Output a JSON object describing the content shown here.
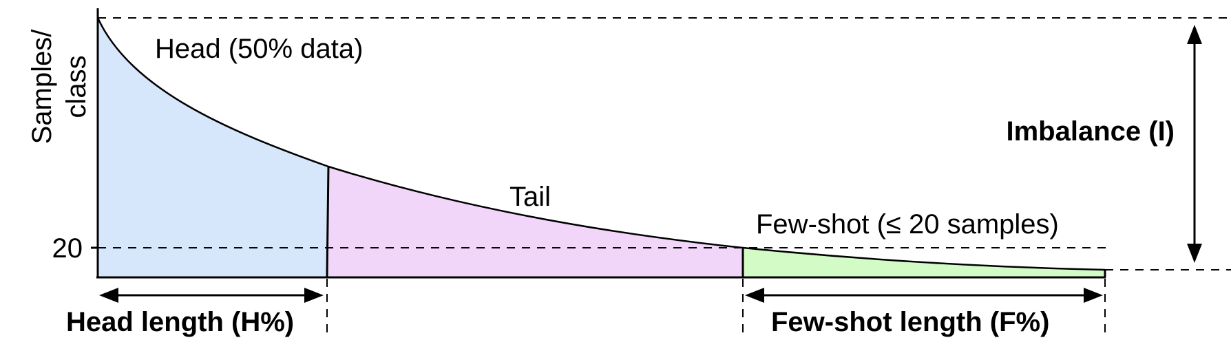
{
  "axis": {
    "y_label_line1": "Samples/",
    "y_label_line2": "class",
    "y_tick_label": "20"
  },
  "regions": {
    "head_label": "Head (50% data)",
    "tail_label": "Tail",
    "few_shot_label": "Few-shot (≤ 20 samples)"
  },
  "measures": {
    "head_length_label": "Head length (H%)",
    "few_shot_length_label": "Few-shot length (F%)",
    "imbalance_label": "Imbalance (I)"
  },
  "colors": {
    "head_fill": "#d6e6fb",
    "tail_fill": "#f1d6fa",
    "few_shot_fill": "#d3fbc6",
    "line": "#000000"
  }
}
